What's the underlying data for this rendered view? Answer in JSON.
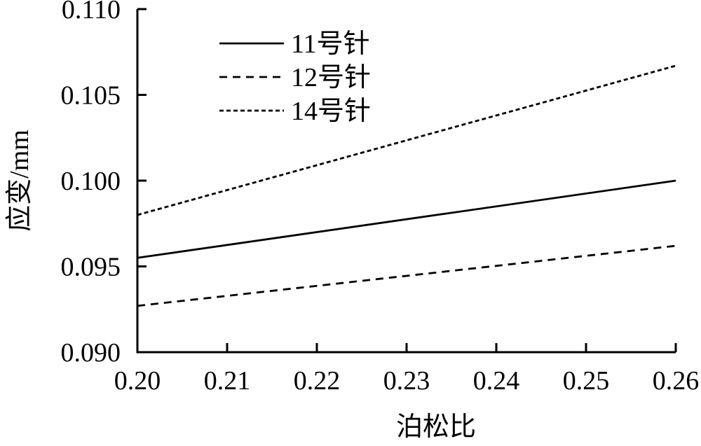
{
  "figure": {
    "background": "#ffffff",
    "ink": "#000000"
  },
  "chart_data": {
    "type": "line",
    "title": "",
    "xlabel": "泊松比",
    "ylabel": "应变/mm",
    "xlim": [
      0.2,
      0.26
    ],
    "ylim": [
      0.09,
      0.11
    ],
    "xticks": {
      "values": [
        0.2,
        0.21,
        0.22,
        0.23,
        0.24,
        0.25,
        0.26
      ],
      "labels": [
        "0.20",
        "0.21",
        "0.22",
        "0.23",
        "0.24",
        "0.25",
        "0.26"
      ]
    },
    "yticks": {
      "values": [
        0.09,
        0.095,
        0.1,
        0.105,
        0.11
      ],
      "labels": [
        "0.090",
        "0.095",
        "0.100",
        "0.105",
        "0.110"
      ]
    },
    "grid": false,
    "legend": {
      "position": "upper-left-inside",
      "entries": [
        "11号针",
        "12号针",
        "14号针"
      ]
    },
    "series": [
      {
        "name": "11号针",
        "line_style": "solid",
        "color": "#000000",
        "points": [
          [
            0.2,
            0.0955
          ],
          [
            0.26,
            0.1
          ]
        ]
      },
      {
        "name": "12号针",
        "line_style": "dashed",
        "color": "#000000",
        "points": [
          [
            0.2,
            0.0927
          ],
          [
            0.26,
            0.0962
          ]
        ]
      },
      {
        "name": "14号针",
        "line_style": "fine-dashed",
        "color": "#000000",
        "points": [
          [
            0.2,
            0.098
          ],
          [
            0.26,
            0.1067
          ]
        ]
      }
    ]
  }
}
